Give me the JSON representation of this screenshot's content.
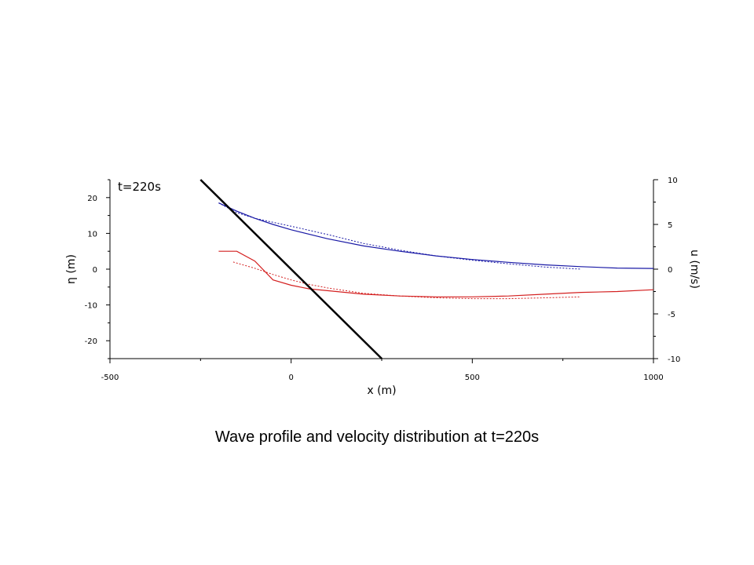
{
  "caption": "Wave profile and velocity distribution at t=220s",
  "chart_data": {
    "type": "line",
    "annotation": "t=220s",
    "xlabel": "x (m)",
    "ylabel_left": "η (m)",
    "ylabel_right": "u (m/s)",
    "xlim": [
      -500,
      1000
    ],
    "ylim_left": [
      -25,
      25
    ],
    "ylim_right": [
      -10,
      10
    ],
    "x_ticks": [
      "-500",
      "0",
      "500",
      "1000"
    ],
    "y_left_ticks": [
      "20",
      "10",
      "0",
      "-10",
      "-20"
    ],
    "y_right_ticks": [
      "10",
      "5",
      "0",
      "-5",
      "-10"
    ],
    "grid": false,
    "colors": {
      "eta": "#1a1aa6",
      "velocity": "#d42020",
      "bottom": "#000000"
    },
    "series": [
      {
        "axis": "left",
        "style": "solid",
        "color": "#1a1aa6",
        "x": [
          -200,
          -150,
          -100,
          -50,
          0,
          100,
          200,
          300,
          400,
          500,
          600,
          700,
          800,
          900,
          1000
        ],
        "y": [
          18.5,
          16.2,
          14.2,
          12.5,
          11.0,
          8.5,
          6.5,
          5.0,
          3.7,
          2.7,
          1.9,
          1.2,
          0.7,
          0.3,
          0.2
        ]
      },
      {
        "axis": "left",
        "style": "dotted",
        "color": "#1a1aa6",
        "x": [
          -200,
          -150,
          -100,
          -50,
          0,
          100,
          200,
          300,
          400,
          500,
          600,
          700,
          800
        ],
        "y": [
          18.5,
          15.8,
          14.2,
          13.1,
          12.0,
          9.7,
          7.2,
          5.3,
          3.7,
          2.5,
          1.5,
          0.6,
          0.0
        ]
      },
      {
        "axis": "right",
        "style": "solid",
        "color": "#d42020",
        "x": [
          -200,
          -150,
          -100,
          -50,
          0,
          50,
          100,
          200,
          300,
          400,
          500,
          600,
          700,
          800,
          900,
          1000
        ],
        "y": [
          2.0,
          2.0,
          0.9,
          -1.2,
          -1.8,
          -2.2,
          -2.4,
          -2.8,
          -3.0,
          -3.1,
          -3.1,
          -3.0,
          -2.8,
          -2.6,
          -2.5,
          -2.3
        ]
      },
      {
        "axis": "right",
        "style": "dotted",
        "color": "#d42020",
        "x": [
          -160,
          -100,
          -50,
          0,
          50,
          100,
          200,
          300,
          400,
          500,
          600,
          700,
          800
        ],
        "y": [
          0.8,
          0.1,
          -0.6,
          -1.2,
          -1.7,
          -2.1,
          -2.7,
          -3.0,
          -3.2,
          -3.3,
          -3.3,
          -3.2,
          -3.1
        ]
      },
      {
        "axis": "left",
        "style": "solid",
        "color": "#000000",
        "x": [
          -250,
          250
        ],
        "y": [
          25,
          -25
        ]
      }
    ]
  }
}
